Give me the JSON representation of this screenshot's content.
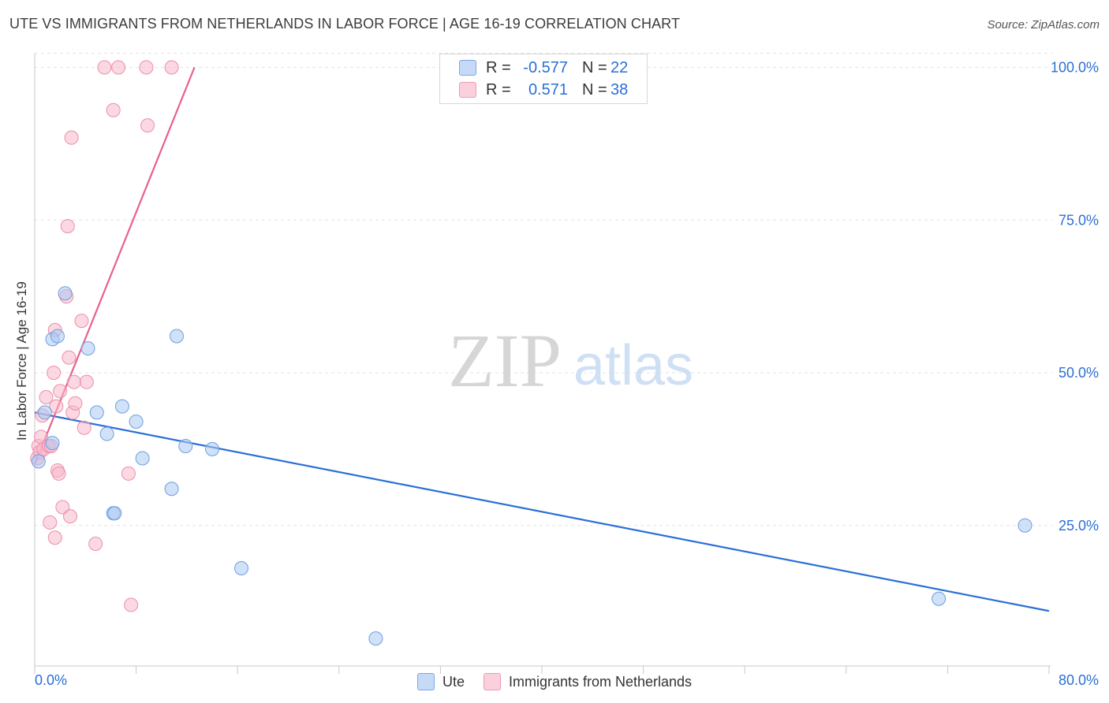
{
  "header": {
    "title": "UTE VS IMMIGRANTS FROM NETHERLANDS IN LABOR FORCE | AGE 16-19 CORRELATION CHART",
    "source": "Source: ZipAtlas.com"
  },
  "watermark": {
    "zip": "ZIP",
    "atlas": "atlas"
  },
  "colors": {
    "ute_fill": "#a9c8f2",
    "ute_stroke": "#6f9fe0",
    "ute_line": "#2b6fd6",
    "neth_fill": "#f7b8ca",
    "neth_stroke": "#ec8fab",
    "neth_line": "#e8608e",
    "axis_text": "#2b6fd6",
    "grid": "#e3e3e3"
  },
  "legend": {
    "rows": [
      {
        "r_label": "R =",
        "r_value": "-0.577",
        "n_label": "N =",
        "n_value": "22"
      },
      {
        "r_label": "R =",
        "r_value": "0.571",
        "n_label": "N =",
        "n_value": "38"
      }
    ],
    "bottom": [
      "Ute",
      "Immigrants from Netherlands"
    ]
  },
  "chart_data": {
    "type": "scatter",
    "title": "UTE VS IMMIGRANTS FROM NETHERLANDS IN LABOR FORCE | AGE 16-19 CORRELATION CHART",
    "xlabel": "",
    "ylabel": "In Labor Force | Age 16-19",
    "xlim": [
      0,
      80
    ],
    "ylim": [
      2,
      102
    ],
    "x_tick_labels": [
      "0.0%",
      "80.0%"
    ],
    "y_ticks": [
      25,
      50,
      75,
      100
    ],
    "y_tick_labels": [
      "25.0%",
      "50.0%",
      "75.0%",
      "100.0%"
    ],
    "grid": true,
    "legend_position": "top-center",
    "series": [
      {
        "name": "Ute",
        "points": [
          [
            0.3,
            35.5
          ],
          [
            0.8,
            43.5
          ],
          [
            1.4,
            38.5
          ],
          [
            1.4,
            55.5
          ],
          [
            1.8,
            56.0
          ],
          [
            2.4,
            63.0
          ],
          [
            4.2,
            54.0
          ],
          [
            4.9,
            43.5
          ],
          [
            5.7,
            40.0
          ],
          [
            6.2,
            27.0
          ],
          [
            6.3,
            27.0
          ],
          [
            6.9,
            44.5
          ],
          [
            8.0,
            42.0
          ],
          [
            8.5,
            36.0
          ],
          [
            10.8,
            31.0
          ],
          [
            11.2,
            56.0
          ],
          [
            11.9,
            38.0
          ],
          [
            14.0,
            37.5
          ],
          [
            16.3,
            18.0
          ],
          [
            26.9,
            6.5
          ],
          [
            71.3,
            13.0
          ],
          [
            78.1,
            25.0
          ]
        ],
        "trend": {
          "x": [
            0,
            80
          ],
          "y": [
            43.5,
            11.0
          ]
        }
      },
      {
        "name": "Immigrants from Netherlands",
        "points": [
          [
            0.2,
            36.0
          ],
          [
            0.3,
            38.0
          ],
          [
            0.4,
            37.0
          ],
          [
            0.5,
            39.5
          ],
          [
            0.6,
            43.0
          ],
          [
            0.7,
            37.5
          ],
          [
            0.9,
            46.0
          ],
          [
            1.1,
            38.0
          ],
          [
            1.2,
            25.5
          ],
          [
            1.3,
            38.0
          ],
          [
            1.5,
            50.0
          ],
          [
            1.6,
            57.0
          ],
          [
            1.6,
            23.0
          ],
          [
            1.7,
            44.5
          ],
          [
            1.8,
            34.0
          ],
          [
            1.9,
            33.5
          ],
          [
            2.0,
            47.0
          ],
          [
            2.2,
            28.0
          ],
          [
            2.5,
            62.5
          ],
          [
            2.6,
            74.0
          ],
          [
            2.7,
            52.5
          ],
          [
            2.8,
            26.5
          ],
          [
            2.9,
            88.5
          ],
          [
            3.0,
            43.5
          ],
          [
            3.1,
            48.5
          ],
          [
            3.2,
            45.0
          ],
          [
            3.7,
            58.5
          ],
          [
            3.9,
            41.0
          ],
          [
            4.1,
            48.5
          ],
          [
            4.8,
            22.0
          ],
          [
            5.5,
            100
          ],
          [
            6.2,
            93.0
          ],
          [
            6.6,
            100
          ],
          [
            7.4,
            33.5
          ],
          [
            7.6,
            12.0
          ],
          [
            8.8,
            100
          ],
          [
            8.9,
            90.5
          ],
          [
            10.8,
            100
          ]
        ],
        "trend": {
          "x": [
            0,
            12.6
          ],
          "y": [
            35.0,
            100
          ]
        }
      }
    ]
  }
}
